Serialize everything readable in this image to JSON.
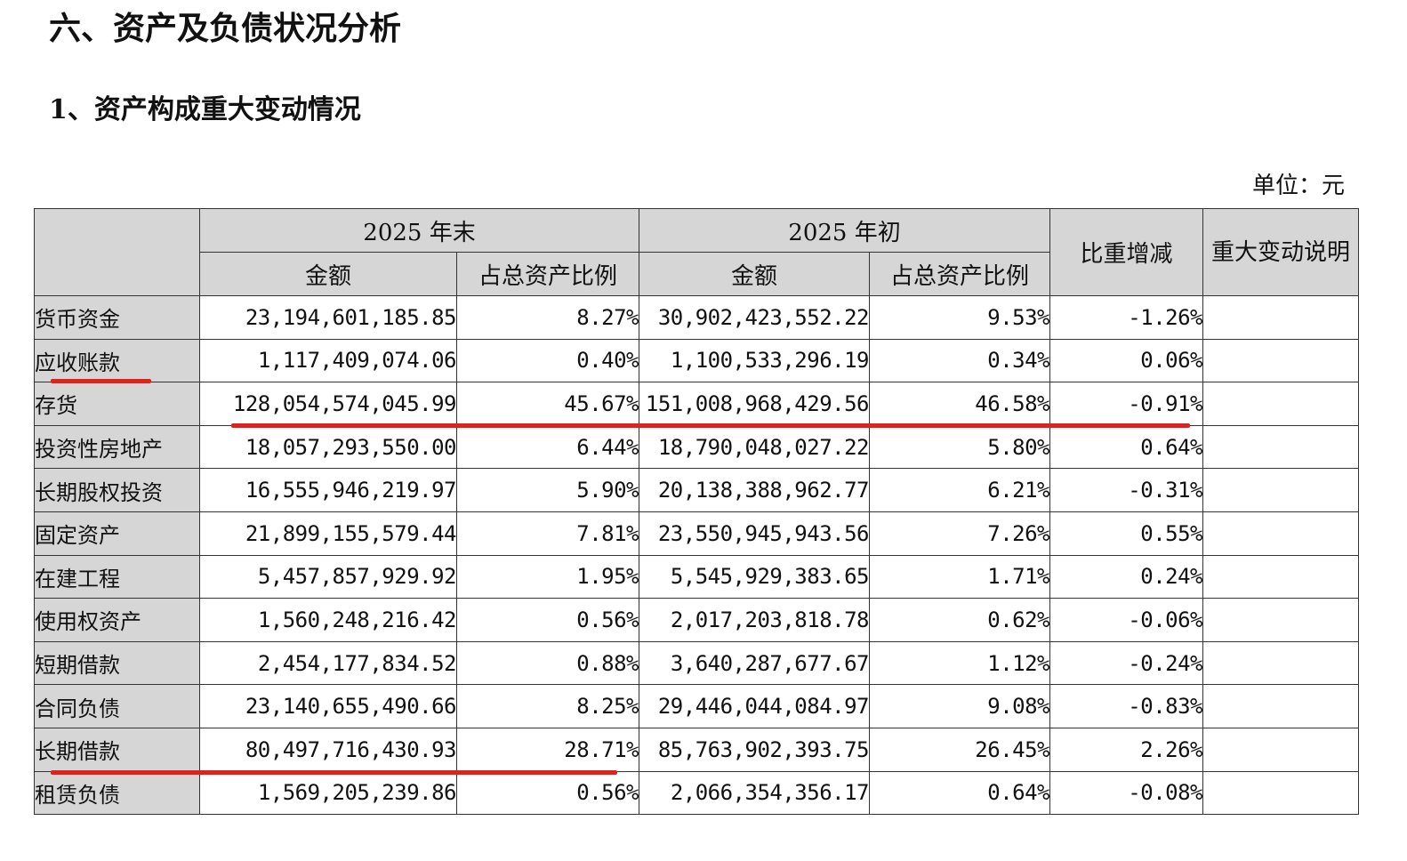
{
  "heading": "六、资产及负债状况分析",
  "subheading": "1、资产构成重大变动情况",
  "unit": "单位：元",
  "table": {
    "header": {
      "period_end": "2025 年末",
      "period_start": "2025 年初",
      "amount": "金额",
      "ratio": "占总资产比例",
      "change": "比重增减",
      "note": "重大变动说明"
    },
    "rows": [
      {
        "item": "货币资金",
        "end_amount": "23,194,601,185.85",
        "end_ratio": "8.27%",
        "start_amount": "30,902,423,552.22",
        "start_ratio": "9.53%",
        "change": "-1.26%",
        "note": ""
      },
      {
        "item": "应收账款",
        "end_amount": "1,117,409,074.06",
        "end_ratio": "0.40%",
        "start_amount": "1,100,533,296.19",
        "start_ratio": "0.34%",
        "change": "0.06%",
        "note": ""
      },
      {
        "item": "存货",
        "end_amount": "128,054,574,045.99",
        "end_ratio": "45.67%",
        "start_amount": "151,008,968,429.56",
        "start_ratio": "46.58%",
        "change": "-0.91%",
        "note": ""
      },
      {
        "item": "投资性房地产",
        "end_amount": "18,057,293,550.00",
        "end_ratio": "6.44%",
        "start_amount": "18,790,048,027.22",
        "start_ratio": "5.80%",
        "change": "0.64%",
        "note": ""
      },
      {
        "item": "长期股权投资",
        "end_amount": "16,555,946,219.97",
        "end_ratio": "5.90%",
        "start_amount": "20,138,388,962.77",
        "start_ratio": "6.21%",
        "change": "-0.31%",
        "note": ""
      },
      {
        "item": "固定资产",
        "end_amount": "21,899,155,579.44",
        "end_ratio": "7.81%",
        "start_amount": "23,550,945,943.56",
        "start_ratio": "7.26%",
        "change": "0.55%",
        "note": ""
      },
      {
        "item": "在建工程",
        "end_amount": "5,457,857,929.92",
        "end_ratio": "1.95%",
        "start_amount": "5,545,929,383.65",
        "start_ratio": "1.71%",
        "change": "0.24%",
        "note": ""
      },
      {
        "item": "使用权资产",
        "end_amount": "1,560,248,216.42",
        "end_ratio": "0.56%",
        "start_amount": "2,017,203,818.78",
        "start_ratio": "0.62%",
        "change": "-0.06%",
        "note": ""
      },
      {
        "item": "短期借款",
        "end_amount": "2,454,177,834.52",
        "end_ratio": "0.88%",
        "start_amount": "3,640,287,677.67",
        "start_ratio": "1.12%",
        "change": "-0.24%",
        "note": ""
      },
      {
        "item": "合同负债",
        "end_amount": "23,140,655,490.66",
        "end_ratio": "8.25%",
        "start_amount": "29,446,044,084.97",
        "start_ratio": "9.08%",
        "change": "-0.83%",
        "note": ""
      },
      {
        "item": "长期借款",
        "end_amount": "80,497,716,430.93",
        "end_ratio": "28.71%",
        "start_amount": "85,763,902,393.75",
        "start_ratio": "26.45%",
        "change": "2.26%",
        "note": ""
      },
      {
        "item": "租赁负债",
        "end_amount": "1,569,205,239.86",
        "end_ratio": "0.56%",
        "start_amount": "2,066,354,356.17",
        "start_ratio": "0.64%",
        "change": "-0.08%",
        "note": ""
      }
    ]
  },
  "colors": {
    "header_bg": "#d6d6d6",
    "border": "#333333",
    "highlight_underline": "#e0221c"
  }
}
